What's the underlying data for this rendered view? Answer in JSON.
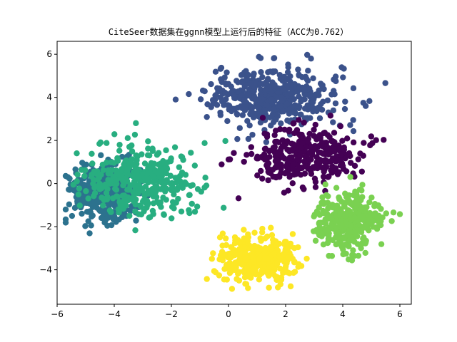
{
  "chart_data": {
    "type": "scatter",
    "title": "CiteSeer数据集在ggnn模型上运行后的特征（ACC为0.762）",
    "xlabel": "",
    "ylabel": "",
    "xlim": [
      -6.0,
      6.4
    ],
    "ylim": [
      -5.6,
      6.6
    ],
    "xticks": [
      -6,
      -4,
      -2,
      0,
      2,
      4,
      6
    ],
    "yticks": [
      -4,
      -2,
      0,
      2,
      4,
      6
    ],
    "xtick_labels": [
      "−6",
      "−4",
      "−2",
      "0",
      "2",
      "4",
      "6"
    ],
    "ytick_labels": [
      "−4",
      "−2",
      "0",
      "2",
      "4",
      "6"
    ],
    "grid": false,
    "legend": false,
    "series": [
      {
        "color": "#3b528b",
        "center": [
          1.6,
          4.0
        ],
        "spread": [
          1.5,
          0.9
        ],
        "count": 430
      },
      {
        "color": "#2c728e",
        "center": [
          -4.4,
          -0.4
        ],
        "spread": [
          0.8,
          0.9
        ],
        "count": 380
      },
      {
        "color": "#28ae80",
        "center": [
          -3.0,
          0.1
        ],
        "spread": [
          1.3,
          1.1
        ],
        "count": 360
      },
      {
        "color": "#440154",
        "center": [
          2.7,
          1.3
        ],
        "spread": [
          1.2,
          0.9
        ],
        "count": 330
      },
      {
        "color": "#fde725",
        "center": [
          1.0,
          -3.5
        ],
        "spread": [
          0.9,
          0.7
        ],
        "count": 370
      },
      {
        "color": "#7ad151",
        "center": [
          4.2,
          -1.7
        ],
        "spread": [
          0.7,
          0.9
        ],
        "count": 360
      }
    ]
  }
}
